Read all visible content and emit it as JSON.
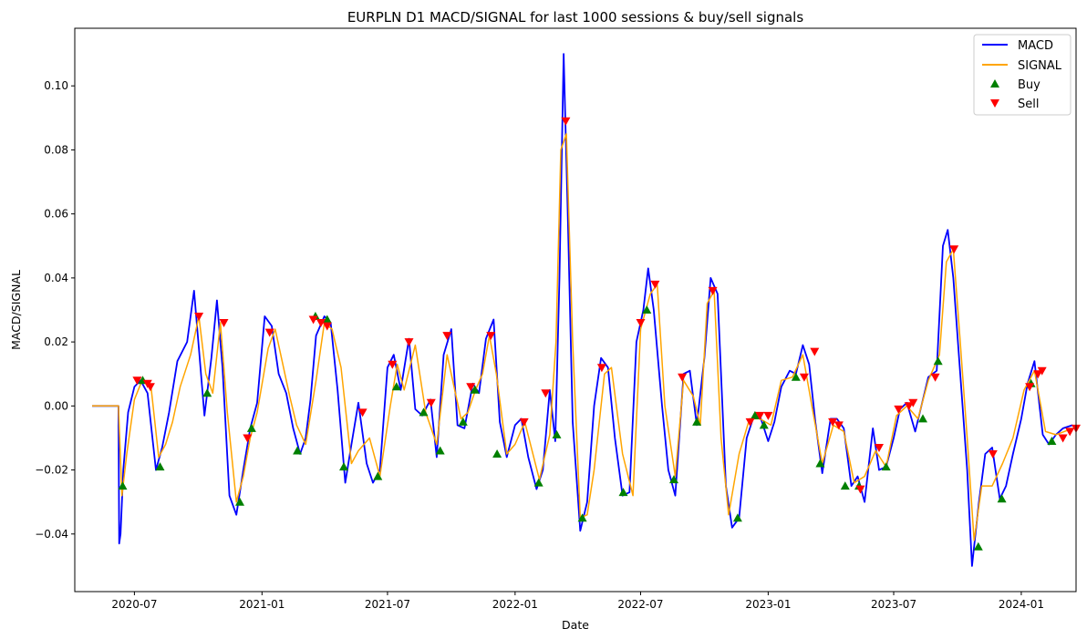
{
  "chart_data": {
    "type": "line",
    "title": "EURPLN D1 MACD/SIGNAL for last 1000 sessions & buy/sell signals",
    "xlabel": "Date",
    "ylabel": "MACD/SIGNAL",
    "x_range": [
      "2020-04-06",
      "2024-03-20"
    ],
    "ylim": [
      -0.058,
      0.118
    ],
    "x_ticks": [
      "2020-07",
      "2021-01",
      "2021-07",
      "2022-01",
      "2022-07",
      "2023-01",
      "2023-07",
      "2024-01"
    ],
    "y_ticks": [
      "−0.04",
      "−0.02",
      "0.00",
      "0.02",
      "0.04",
      "0.06",
      "0.08",
      "0.10"
    ],
    "y_tick_values": [
      -0.04,
      -0.02,
      0.0,
      0.02,
      0.04,
      0.06,
      0.08,
      0.1
    ],
    "grid": false,
    "legend_position": "top-right",
    "colors": {
      "macd": "#0000ff",
      "signal": "#ffa500",
      "buy": "#008000",
      "sell": "#ff0000"
    },
    "legend": [
      "MACD",
      "SIGNAL",
      "Buy",
      "Sell"
    ],
    "series": [
      {
        "name": "MACD",
        "dates": [
          "2020-05-01",
          "2020-06-08",
          "2020-06-09",
          "2020-06-11",
          "2020-06-15",
          "2020-06-22",
          "2020-07-01",
          "2020-07-10",
          "2020-07-20",
          "2020-08-01",
          "2020-08-10",
          "2020-08-20",
          "2020-09-01",
          "2020-09-15",
          "2020-09-25",
          "2020-10-02",
          "2020-10-10",
          "2020-10-20",
          "2020-10-28",
          "2020-11-05",
          "2020-11-15",
          "2020-11-25",
          "2020-12-05",
          "2020-12-15",
          "2020-12-25",
          "2021-01-05",
          "2021-01-15",
          "2021-01-25",
          "2021-02-05",
          "2021-02-15",
          "2021-02-25",
          "2021-03-05",
          "2021-03-12",
          "2021-03-20",
          "2021-04-01",
          "2021-04-10",
          "2021-04-20",
          "2021-05-01",
          "2021-05-10",
          "2021-05-20",
          "2021-06-01",
          "2021-06-10",
          "2021-06-20",
          "2021-07-01",
          "2021-07-10",
          "2021-07-20",
          "2021-08-01",
          "2021-08-10",
          "2021-08-20",
          "2021-09-01",
          "2021-09-10",
          "2021-09-20",
          "2021-10-01",
          "2021-10-10",
          "2021-10-20",
          "2021-11-01",
          "2021-11-10",
          "2021-11-20",
          "2021-12-01",
          "2021-12-10",
          "2021-12-20",
          "2022-01-01",
          "2022-01-10",
          "2022-01-20",
          "2022-02-01",
          "2022-02-10",
          "2022-02-20",
          "2022-02-28",
          "2022-03-06",
          "2022-03-12",
          "2022-03-18",
          "2022-03-25",
          "2022-04-05",
          "2022-04-15",
          "2022-04-25",
          "2022-05-05",
          "2022-05-15",
          "2022-05-25",
          "2022-06-05",
          "2022-06-15",
          "2022-06-25",
          "2022-07-05",
          "2022-07-12",
          "2022-07-20",
          "2022-08-01",
          "2022-08-10",
          "2022-08-20",
          "2022-09-01",
          "2022-09-10",
          "2022-09-20",
          "2022-10-01",
          "2022-10-10",
          "2022-10-20",
          "2022-11-01",
          "2022-11-10",
          "2022-11-20",
          "2022-12-01",
          "2022-12-10",
          "2022-12-20",
          "2023-01-01",
          "2023-01-10",
          "2023-01-20",
          "2023-02-01",
          "2023-02-10",
          "2023-02-20",
          "2023-03-01",
          "2023-03-10",
          "2023-03-20",
          "2023-04-01",
          "2023-04-10",
          "2023-04-20",
          "2023-05-01",
          "2023-05-10",
          "2023-05-20",
          "2023-06-01",
          "2023-06-10",
          "2023-06-20",
          "2023-07-01",
          "2023-07-10",
          "2023-07-20",
          "2023-08-01",
          "2023-08-10",
          "2023-08-20",
          "2023-09-01",
          "2023-09-10",
          "2023-09-17",
          "2023-09-25",
          "2023-10-05",
          "2023-10-15",
          "2023-10-22",
          "2023-11-01",
          "2023-11-10",
          "2023-11-20",
          "2023-12-01",
          "2023-12-10",
          "2023-12-20",
          "2024-01-01",
          "2024-01-10",
          "2024-01-20",
          "2024-02-01",
          "2024-02-10",
          "2024-02-20",
          "2024-03-01",
          "2024-03-15"
        ],
        "values": [
          0.0,
          0.0,
          -0.043,
          -0.04,
          -0.02,
          -0.002,
          0.006,
          0.008,
          0.004,
          -0.02,
          -0.013,
          -0.002,
          0.014,
          0.02,
          0.036,
          0.018,
          -0.003,
          0.015,
          0.033,
          0.012,
          -0.028,
          -0.034,
          -0.02,
          -0.007,
          0.001,
          0.028,
          0.025,
          0.01,
          0.004,
          -0.007,
          -0.015,
          -0.01,
          0.002,
          0.022,
          0.028,
          0.026,
          0.005,
          -0.024,
          -0.012,
          0.001,
          -0.018,
          -0.024,
          -0.02,
          0.012,
          0.016,
          0.005,
          0.021,
          -0.001,
          -0.003,
          0.002,
          -0.016,
          0.016,
          0.024,
          -0.006,
          -0.007,
          0.007,
          0.004,
          0.021,
          0.027,
          -0.005,
          -0.016,
          -0.006,
          -0.004,
          -0.016,
          -0.026,
          -0.02,
          0.005,
          -0.011,
          0.04,
          0.11,
          0.06,
          -0.005,
          -0.039,
          -0.03,
          0.0,
          0.015,
          0.012,
          -0.01,
          -0.028,
          -0.027,
          0.02,
          0.03,
          0.043,
          0.03,
          0.0,
          -0.02,
          -0.028,
          0.01,
          0.011,
          -0.006,
          0.015,
          0.04,
          0.035,
          -0.025,
          -0.038,
          -0.035,
          -0.01,
          -0.004,
          -0.003,
          -0.011,
          -0.005,
          0.006,
          0.011,
          0.01,
          0.019,
          0.013,
          -0.005,
          -0.021,
          -0.004,
          -0.004,
          -0.007,
          -0.025,
          -0.022,
          -0.03,
          -0.007,
          -0.02,
          -0.019,
          -0.01,
          -0.001,
          0.001,
          -0.008,
          0.0,
          0.009,
          0.011,
          0.05,
          0.055,
          0.04,
          0.01,
          -0.02,
          -0.05,
          -0.03,
          -0.015,
          -0.013,
          -0.029,
          -0.025,
          -0.015,
          -0.004,
          0.007,
          0.014,
          -0.009,
          -0.012,
          -0.009,
          -0.007,
          -0.006
        ]
      },
      {
        "name": "SIGNAL",
        "dates": [
          "2020-05-01",
          "2020-06-08",
          "2020-06-13",
          "2020-06-20",
          "2020-07-01",
          "2020-07-12",
          "2020-07-25",
          "2020-08-05",
          "2020-08-15",
          "2020-08-25",
          "2020-09-05",
          "2020-09-20",
          "2020-10-02",
          "2020-10-12",
          "2020-10-22",
          "2020-11-02",
          "2020-11-12",
          "2020-11-25",
          "2020-12-05",
          "2020-12-15",
          "2020-12-25",
          "2021-01-10",
          "2021-01-20",
          "2021-02-01",
          "2021-02-10",
          "2021-02-20",
          "2021-03-05",
          "2021-03-20",
          "2021-04-01",
          "2021-04-12",
          "2021-04-25",
          "2021-05-10",
          "2021-05-20",
          "2021-06-05",
          "2021-06-20",
          "2021-07-05",
          "2021-07-15",
          "2021-07-25",
          "2021-08-10",
          "2021-08-25",
          "2021-09-10",
          "2021-09-25",
          "2021-10-05",
          "2021-10-15",
          "2021-10-25",
          "2021-11-05",
          "2021-11-15",
          "2021-11-25",
          "2021-12-05",
          "2021-12-20",
          "2022-01-01",
          "2022-01-15",
          "2022-02-05",
          "2022-02-20",
          "2022-03-01",
          "2022-03-08",
          "2022-03-16",
          "2022-03-25",
          "2022-04-05",
          "2022-04-15",
          "2022-04-25",
          "2022-05-10",
          "2022-05-20",
          "2022-06-05",
          "2022-06-20",
          "2022-07-01",
          "2022-07-15",
          "2022-07-25",
          "2022-08-05",
          "2022-08-20",
          "2022-09-01",
          "2022-09-15",
          "2022-09-25",
          "2022-10-05",
          "2022-10-15",
          "2022-10-25",
          "2022-11-05",
          "2022-11-20",
          "2022-12-05",
          "2022-12-20",
          "2023-01-05",
          "2023-01-20",
          "2023-02-05",
          "2023-02-20",
          "2023-03-05",
          "2023-03-20",
          "2023-04-05",
          "2023-04-20",
          "2023-05-05",
          "2023-05-20",
          "2023-06-05",
          "2023-06-20",
          "2023-07-05",
          "2023-07-20",
          "2023-08-05",
          "2023-08-20",
          "2023-09-05",
          "2023-09-15",
          "2023-09-25",
          "2023-10-05",
          "2023-10-15",
          "2023-10-25",
          "2023-11-05",
          "2023-11-20",
          "2023-12-05",
          "2023-12-20",
          "2024-01-05",
          "2024-01-20",
          "2024-02-05",
          "2024-02-20",
          "2024-03-15"
        ],
        "values": [
          0.0,
          0.0,
          -0.028,
          -0.015,
          0.002,
          0.008,
          0.006,
          -0.016,
          -0.012,
          -0.005,
          0.006,
          0.016,
          0.028,
          0.01,
          0.004,
          0.026,
          -0.002,
          -0.03,
          -0.022,
          -0.01,
          -0.002,
          0.018,
          0.024,
          0.012,
          0.003,
          -0.006,
          -0.012,
          0.008,
          0.026,
          0.024,
          0.012,
          -0.018,
          -0.014,
          -0.01,
          -0.022,
          0.0,
          0.013,
          0.005,
          0.019,
          -0.002,
          -0.012,
          0.016,
          0.006,
          -0.004,
          -0.002,
          0.005,
          0.01,
          0.022,
          0.01,
          -0.015,
          -0.012,
          -0.005,
          -0.023,
          -0.009,
          0.02,
          0.08,
          0.085,
          0.02,
          -0.035,
          -0.034,
          -0.02,
          0.01,
          0.012,
          -0.015,
          -0.028,
          0.024,
          0.035,
          0.038,
          0.0,
          -0.022,
          0.008,
          0.003,
          -0.006,
          0.032,
          0.036,
          -0.01,
          -0.034,
          -0.015,
          -0.004,
          -0.004,
          -0.006,
          0.008,
          0.009,
          0.016,
          0.0,
          -0.018,
          -0.006,
          -0.008,
          -0.024,
          -0.022,
          -0.014,
          -0.019,
          -0.003,
          0.0,
          -0.004,
          0.008,
          0.016,
          0.045,
          0.049,
          0.02,
          -0.01,
          -0.042,
          -0.025,
          -0.025,
          -0.018,
          -0.01,
          0.005,
          0.011,
          -0.008,
          -0.009,
          -0.007
        ]
      }
    ],
    "buy_signals": {
      "dates": [
        "2020-06-14",
        "2020-07-13",
        "2020-08-07",
        "2020-10-14",
        "2020-11-30",
        "2020-12-17",
        "2021-02-21",
        "2021-03-19",
        "2021-04-05",
        "2021-04-29",
        "2021-06-17",
        "2021-07-14",
        "2021-08-22",
        "2021-09-15",
        "2021-10-18",
        "2021-11-04",
        "2021-12-06",
        "2022-02-04",
        "2022-03-02",
        "2022-04-08",
        "2022-06-06",
        "2022-07-10",
        "2022-08-18",
        "2022-09-20",
        "2022-11-18",
        "2022-12-13",
        "2022-12-26",
        "2023-02-10",
        "2023-03-17",
        "2023-04-22",
        "2023-05-12",
        "2023-06-20",
        "2023-08-12",
        "2023-09-03",
        "2023-10-31",
        "2023-12-04",
        "2024-01-15",
        "2024-02-14"
      ],
      "values": [
        -0.025,
        0.008,
        -0.019,
        0.004,
        -0.03,
        -0.007,
        -0.014,
        0.028,
        0.027,
        -0.019,
        -0.022,
        0.006,
        -0.002,
        -0.014,
        -0.005,
        0.005,
        -0.015,
        -0.024,
        -0.009,
        -0.035,
        -0.027,
        0.03,
        -0.023,
        -0.005,
        -0.035,
        -0.003,
        -0.006,
        0.009,
        -0.018,
        -0.025,
        -0.025,
        -0.019,
        -0.004,
        0.014,
        -0.044,
        -0.029,
        0.007,
        -0.011
      ]
    },
    "sell_signals": {
      "dates": [
        "2020-07-05",
        "2020-07-20",
        "2020-07-24",
        "2020-10-02",
        "2020-11-07",
        "2020-12-11",
        "2021-01-12",
        "2021-03-16",
        "2021-03-27",
        "2021-04-05",
        "2021-05-26",
        "2021-07-08",
        "2021-08-01",
        "2021-09-02",
        "2021-09-25",
        "2021-10-29",
        "2021-11-27",
        "2022-01-14",
        "2022-02-14",
        "2022-03-15",
        "2022-05-06",
        "2022-07-01",
        "2022-07-22",
        "2022-08-30",
        "2022-10-13",
        "2022-12-06",
        "2022-12-20",
        "2023-01-01",
        "2023-02-22",
        "2023-03-09",
        "2023-04-04",
        "2023-04-13",
        "2023-05-14",
        "2023-06-10",
        "2023-07-08",
        "2023-07-23",
        "2023-07-29",
        "2023-08-30",
        "2023-09-26",
        "2023-11-21",
        "2024-01-13",
        "2024-01-25",
        "2024-01-31",
        "2024-03-01",
        "2024-03-11",
        "2024-03-20"
      ],
      "values": [
        0.008,
        0.007,
        0.006,
        0.028,
        0.026,
        -0.01,
        0.023,
        0.027,
        0.026,
        0.025,
        -0.002,
        0.013,
        0.02,
        0.001,
        0.022,
        0.006,
        0.022,
        -0.005,
        0.004,
        0.089,
        0.012,
        0.026,
        0.038,
        0.009,
        0.036,
        -0.005,
        -0.003,
        -0.003,
        0.009,
        0.017,
        -0.005,
        -0.006,
        -0.026,
        -0.013,
        -0.001,
        0.0,
        0.001,
        0.009,
        0.049,
        -0.015,
        0.006,
        0.01,
        0.011,
        -0.01,
        -0.008,
        -0.007
      ]
    }
  }
}
